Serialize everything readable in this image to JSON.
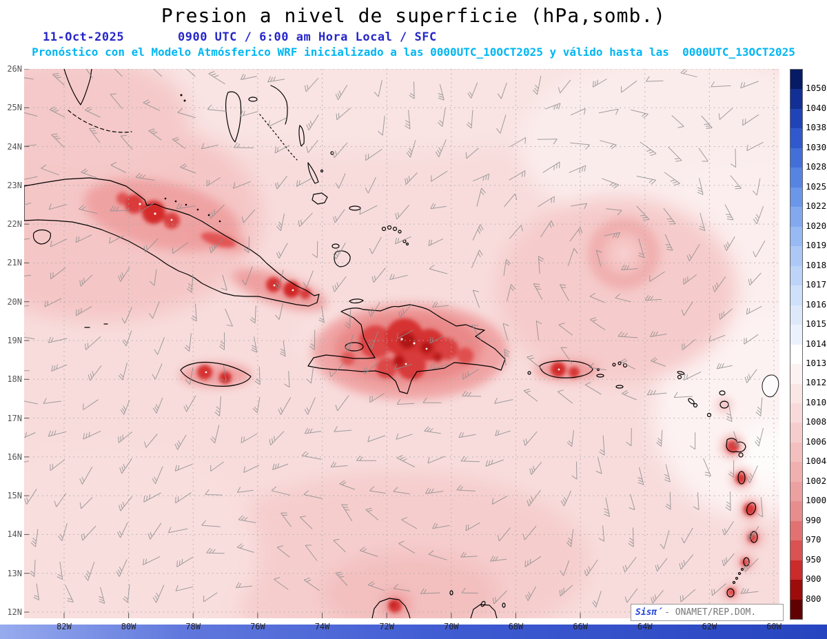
{
  "header": {
    "title": "Presion a nivel de superficie (hPa,somb.)",
    "date": "11-Oct-2025",
    "time": "0900 UTC / 6:00 am Hora Local / SFC",
    "forecast": "Pronóstico con el Modelo Atmósferico WRF inicializado a las 0000UTC_10OCT2025 y válido hasta las  0000UTC_13OCT2025"
  },
  "axes": {
    "lat_labels": [
      "26N",
      "25N",
      "24N",
      "23N",
      "22N",
      "21N",
      "20N",
      "19N",
      "18N",
      "17N",
      "16N",
      "15N",
      "14N",
      "13N",
      "12N"
    ],
    "lon_labels": [
      "82W",
      "80W",
      "78W",
      "76W",
      "74W",
      "72W",
      "70W",
      "68W",
      "66W",
      "64W",
      "62W",
      "60W"
    ]
  },
  "colorbar": {
    "labels": [
      "1050",
      "1040",
      "1038",
      "1030",
      "1028",
      "1025",
      "1022",
      "1020",
      "1019",
      "1018",
      "1017",
      "1016",
      "1015",
      "1014",
      "1013",
      "1012",
      "1010",
      "1008",
      "1006",
      "1004",
      "1002",
      "1000",
      "990",
      "970",
      "950",
      "900",
      "800"
    ],
    "colors": [
      "#061b66",
      "#122f95",
      "#1f44b8",
      "#2f59cc",
      "#4270d8",
      "#5584e2",
      "#6b97ea",
      "#82a9f0",
      "#98baf4",
      "#abc8f6",
      "#bdd4f8",
      "#cee0fa",
      "#dde9fb",
      "#ecf2fd",
      "#ffffff",
      "#fdf2f2",
      "#fbe6e6",
      "#f9dada",
      "#f6cdcd",
      "#f3bfbf",
      "#f0b0b0",
      "#eda0a0",
      "#e88d8d",
      "#e27272",
      "#da5252",
      "#cb2b2b",
      "#9e0b0b",
      "#600000"
    ]
  },
  "watermark": {
    "brand": "Sisπ́",
    "org": "- ONAMET/REP.DOM."
  }
}
